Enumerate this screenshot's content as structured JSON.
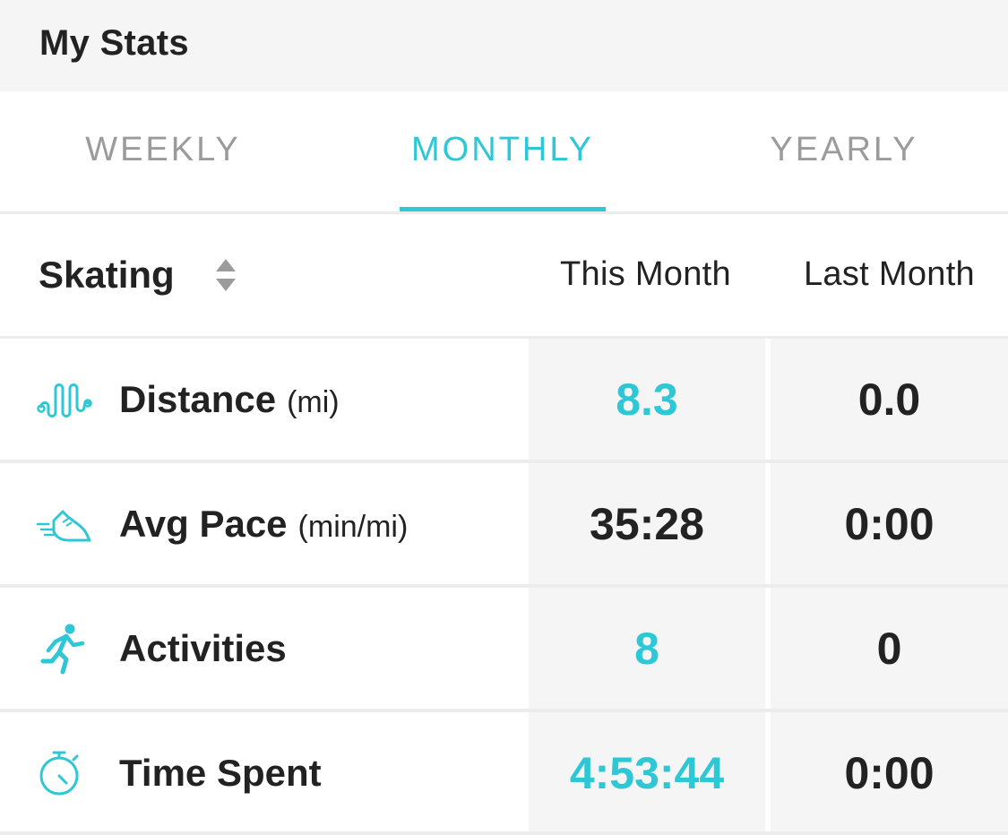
{
  "header": {
    "title": "My Stats"
  },
  "tabs": [
    {
      "label": "WEEKLY",
      "active": false
    },
    {
      "label": "MONTHLY",
      "active": true
    },
    {
      "label": "YEARLY",
      "active": false
    }
  ],
  "accent_color": "#2ec7d6",
  "table": {
    "sport": "Skating",
    "columns": [
      "This Month",
      "Last Month"
    ],
    "rows": [
      {
        "icon": "distance-wave-icon",
        "label": "Distance",
        "unit": "(mi)",
        "this": "8.3",
        "last": "0.0",
        "this_highlight": true
      },
      {
        "icon": "shoe-speed-icon",
        "label": "Avg Pace",
        "unit": "(min/mi)",
        "this": "35:28",
        "last": "0:00",
        "this_highlight": false
      },
      {
        "icon": "runner-icon",
        "label": "Activities",
        "unit": "",
        "this": "8",
        "last": "0",
        "this_highlight": true
      },
      {
        "icon": "stopwatch-icon",
        "label": "Time Spent",
        "unit": "",
        "this": "4:53:44",
        "last": "0:00",
        "this_highlight": true
      }
    ]
  }
}
